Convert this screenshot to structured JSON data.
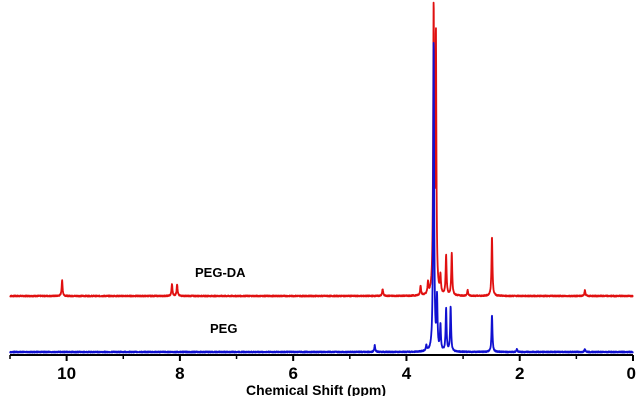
{
  "chart_data": {
    "type": "line",
    "xlabel": "Chemical Shift (ppm)",
    "ylabel": "",
    "xlim": [
      11,
      0
    ],
    "x_reversed": true,
    "x_ticks": [
      10,
      8,
      6,
      4,
      2,
      0
    ],
    "x_tick_labels": [
      "10",
      "8",
      "6",
      "4",
      "2",
      "0"
    ],
    "grid": false,
    "legend": "none",
    "series": [
      {
        "name": "PEG-DA",
        "color": "#e01010",
        "baseline_offset": 1.0,
        "peaks": [
          {
            "ppm": 10.08,
            "intensity": 0.055
          },
          {
            "ppm": 8.14,
            "intensity": 0.042
          },
          {
            "ppm": 8.05,
            "intensity": 0.042
          },
          {
            "ppm": 4.42,
            "intensity": 0.025
          },
          {
            "ppm": 3.75,
            "intensity": 0.035
          },
          {
            "ppm": 3.62,
            "intensity": 0.04
          },
          {
            "ppm": 3.52,
            "intensity": 1.0
          },
          {
            "ppm": 3.48,
            "intensity": 0.9
          },
          {
            "ppm": 3.4,
            "intensity": 0.06
          },
          {
            "ppm": 3.3,
            "intensity": 0.14
          },
          {
            "ppm": 3.2,
            "intensity": 0.15
          },
          {
            "ppm": 2.92,
            "intensity": 0.02
          },
          {
            "ppm": 2.49,
            "intensity": 0.21
          },
          {
            "ppm": 0.85,
            "intensity": 0.02
          }
        ]
      },
      {
        "name": "PEG",
        "color": "#1010d0",
        "baseline_offset": 0.0,
        "peaks": [
          {
            "ppm": 4.56,
            "intensity": 0.025
          },
          {
            "ppm": 3.65,
            "intensity": 0.02
          },
          {
            "ppm": 3.52,
            "intensity": 1.1
          },
          {
            "ppm": 3.46,
            "intensity": 0.18
          },
          {
            "ppm": 3.4,
            "intensity": 0.09
          },
          {
            "ppm": 3.3,
            "intensity": 0.15
          },
          {
            "ppm": 3.22,
            "intensity": 0.16
          },
          {
            "ppm": 2.49,
            "intensity": 0.13
          },
          {
            "ppm": 2.05,
            "intensity": 0.01
          },
          {
            "ppm": 0.85,
            "intensity": 0.01
          }
        ]
      }
    ]
  }
}
